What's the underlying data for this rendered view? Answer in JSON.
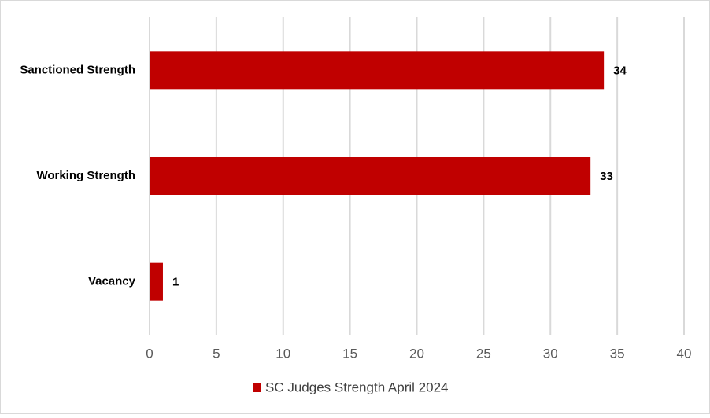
{
  "chart_data": {
    "type": "bar",
    "orientation": "horizontal",
    "categories": [
      "Sanctioned Strength",
      "Working Strength",
      "Vacancy"
    ],
    "series": [
      {
        "name": "SC Judges Strength April 2024",
        "color": "#c00000",
        "values": [
          34,
          33,
          1
        ]
      }
    ],
    "xlim": [
      0,
      40
    ],
    "xticks": [
      0,
      5,
      10,
      15,
      20,
      25,
      30,
      35,
      40
    ],
    "grid": true,
    "legend": "bottom",
    "data_labels": true
  }
}
